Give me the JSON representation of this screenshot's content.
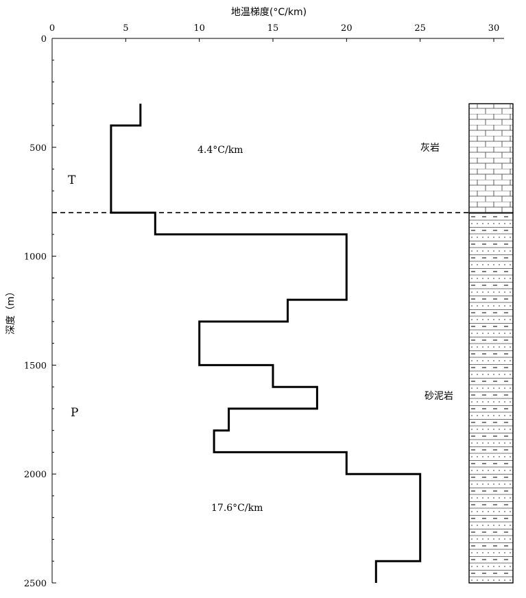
{
  "chart_data": {
    "type": "line",
    "title": "",
    "xlabel": "地温梯度(°C/km)",
    "ylabel": "深度（m）",
    "x_axis_position": "top",
    "y_axis_direction": "downward",
    "xlim": [
      0,
      30
    ],
    "ylim": [
      0,
      2500
    ],
    "x_ticks": [
      "0",
      "5",
      "10",
      "15",
      "20",
      "25",
      "30"
    ],
    "y_ticks": [
      "0",
      "500",
      "1000",
      "1500",
      "2000",
      "2500"
    ],
    "series": [
      {
        "name": "",
        "style": "step",
        "color": "#000000",
        "points": [
          [
            6,
            300
          ],
          [
            6,
            400
          ],
          [
            4,
            400
          ],
          [
            4,
            800
          ],
          [
            7,
            800
          ],
          [
            7,
            900
          ],
          [
            20,
            900
          ],
          [
            20,
            1200
          ],
          [
            16,
            1200
          ],
          [
            16,
            1300
          ],
          [
            10,
            1300
          ],
          [
            10,
            1500
          ],
          [
            15,
            1500
          ],
          [
            15,
            1600
          ],
          [
            18,
            1600
          ],
          [
            18,
            1700
          ],
          [
            12,
            1700
          ],
          [
            12,
            1800
          ],
          [
            11,
            1800
          ],
          [
            11,
            1900
          ],
          [
            20,
            1900
          ],
          [
            20,
            2000
          ],
          [
            25,
            2000
          ],
          [
            25,
            2400
          ],
          [
            22,
            2400
          ],
          [
            22,
            2500
          ]
        ]
      }
    ],
    "boundary_depth": 800,
    "annotations": {
      "upper_gradient": "4.4°C/km",
      "lower_gradient": "17.6°C/km",
      "strata_upper": "T",
      "strata_lower": "P"
    },
    "lithology_column": {
      "top_depth": 300,
      "bottom_depth": 2500,
      "layers": [
        {
          "name": "灰岩",
          "top": 300,
          "bottom": 800,
          "pattern": "limestone"
        },
        {
          "name": "砂泥岩",
          "top": 800,
          "bottom": 2500,
          "pattern": "sand-mud"
        }
      ]
    }
  }
}
